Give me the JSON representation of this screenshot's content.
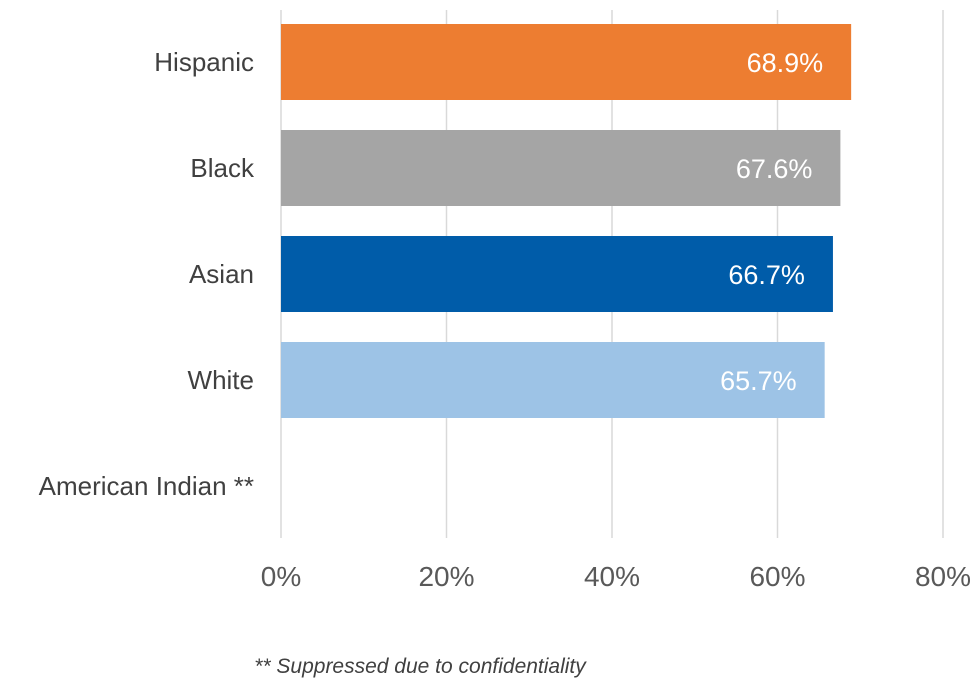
{
  "chart_data": {
    "type": "bar",
    "orientation": "horizontal",
    "categories": [
      "Hispanic",
      "Black",
      "Asian",
      "White",
      "American Indian **"
    ],
    "values": [
      68.9,
      67.6,
      66.7,
      65.7,
      null
    ],
    "data_labels": [
      "68.9%",
      "67.6%",
      "66.7%",
      "65.7%",
      ""
    ],
    "colors": [
      "#ED7D31",
      "#A5A5A5",
      "#005CA9",
      "#9DC3E6",
      null
    ],
    "x_ticks": [
      "0%",
      "20%",
      "40%",
      "60%",
      "80%"
    ],
    "xlim": [
      0,
      80
    ],
    "grid": "vertical",
    "legend": "none"
  },
  "footnote": "** Suppressed due to confidentiality"
}
